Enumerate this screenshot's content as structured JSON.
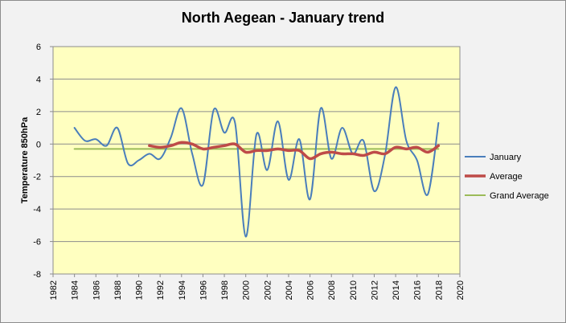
{
  "chart_data": {
    "type": "line",
    "title": "North Aegean - January trend",
    "ylabel": "Temperature 850hPa",
    "xlabel": "",
    "xlim": [
      1982,
      2020
    ],
    "ylim": [
      -8,
      6
    ],
    "x_ticks": [
      "1982",
      "1984",
      "1986",
      "1988",
      "1990",
      "1992",
      "1994",
      "1996",
      "1998",
      "2000",
      "2002",
      "2004",
      "2006",
      "2008",
      "2010",
      "2012",
      "2014",
      "2016",
      "2018",
      "2020"
    ],
    "y_ticks": [
      "6",
      "4",
      "2",
      "0",
      "-2",
      "-4",
      "-6",
      "-8"
    ],
    "grid": "horizontal",
    "legend_position": "right",
    "background": "#ffffc0",
    "series": [
      {
        "name": "January",
        "color": "#4a7ebb",
        "smooth": true,
        "x": [
          1984,
          1985,
          1986,
          1987,
          1988,
          1989,
          1990,
          1991,
          1992,
          1993,
          1994,
          1995,
          1996,
          1997,
          1998,
          1999,
          2000,
          2001,
          2002,
          2003,
          2004,
          2005,
          2006,
          2007,
          2008,
          2009,
          2010,
          2011,
          2012,
          2013,
          2014,
          2015,
          2016,
          2017,
          2018
        ],
        "y": [
          1.0,
          0.2,
          0.3,
          -0.1,
          1.0,
          -1.2,
          -1.0,
          -0.6,
          -0.9,
          0.4,
          2.2,
          -0.6,
          -2.5,
          2.1,
          0.7,
          1.3,
          -5.7,
          0.6,
          -1.6,
          1.4,
          -2.2,
          0.3,
          -3.4,
          2.2,
          -0.9,
          1.0,
          -0.6,
          0.2,
          -2.9,
          -0.7,
          3.5,
          0.2,
          -1.0,
          -3.1,
          1.3
        ]
      },
      {
        "name": "Average",
        "color": "#be4b48",
        "smooth": true,
        "x": [
          1991,
          1992,
          1993,
          1994,
          1995,
          1996,
          1997,
          1998,
          1999,
          2000,
          2001,
          2002,
          2003,
          2004,
          2005,
          2006,
          2007,
          2008,
          2009,
          2010,
          2011,
          2012,
          2013,
          2014,
          2015,
          2016,
          2017,
          2018
        ],
        "y": [
          -0.1,
          -0.2,
          -0.1,
          0.1,
          0.0,
          -0.3,
          -0.2,
          -0.1,
          0.0,
          -0.5,
          -0.4,
          -0.4,
          -0.3,
          -0.4,
          -0.4,
          -0.9,
          -0.6,
          -0.5,
          -0.6,
          -0.6,
          -0.7,
          -0.5,
          -0.6,
          -0.2,
          -0.3,
          -0.2,
          -0.5,
          -0.1
        ]
      },
      {
        "name": "Grand Average",
        "color": "#9bbb59",
        "smooth": false,
        "x": [
          1984,
          2018
        ],
        "y": [
          -0.3,
          -0.3
        ]
      }
    ]
  }
}
